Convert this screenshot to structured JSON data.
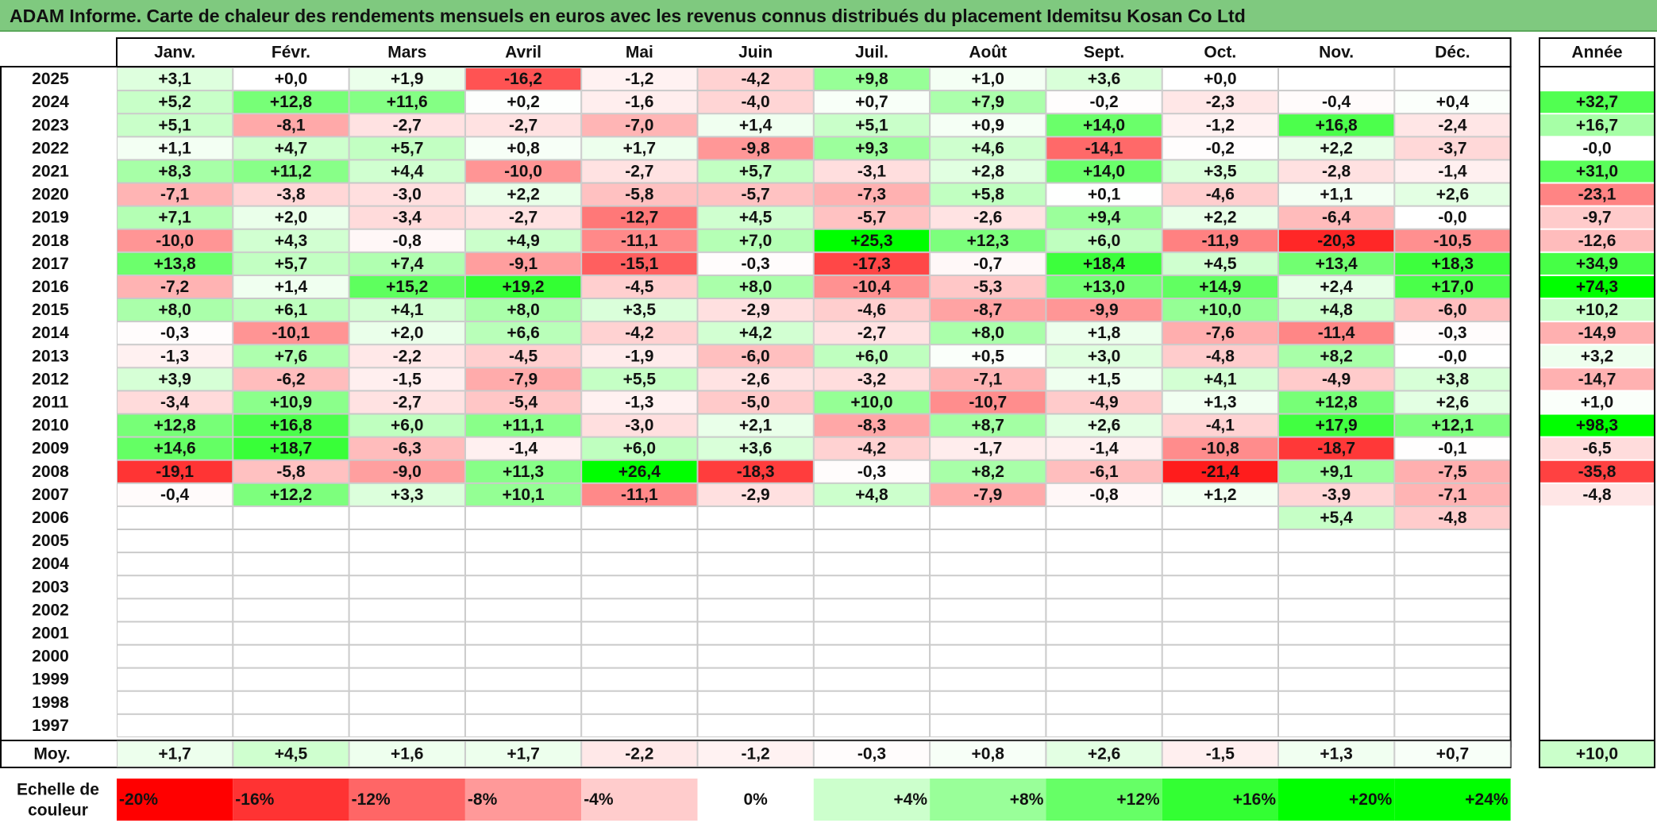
{
  "title": "ADAM Informe. Carte de chaleur des rendements mensuels en euros avec les revenus connus distribués du placement Idemitsu Kosan Co Ltd",
  "chart_data": {
    "type": "heatmap",
    "months": [
      "Janv.",
      "Févr.",
      "Mars",
      "Avril",
      "Mai",
      "Juin",
      "Juil.",
      "Août",
      "Sept.",
      "Oct.",
      "Nov.",
      "Déc."
    ],
    "annual_label": "Année",
    "avg_label": "Moy.",
    "rows": [
      {
        "year": "2025",
        "values": [
          "+3,1",
          "+0,0",
          "+1,9",
          "-16,2",
          "-1,2",
          "-4,2",
          "+9,8",
          "+1,0",
          "+3,6",
          "+0,0",
          "",
          ""
        ],
        "annual": ""
      },
      {
        "year": "2024",
        "values": [
          "+5,2",
          "+12,8",
          "+11,6",
          "+0,2",
          "-1,6",
          "-4,0",
          "+0,7",
          "+7,9",
          "-0,2",
          "-2,3",
          "-0,4",
          "+0,4"
        ],
        "annual": "+32,7"
      },
      {
        "year": "2023",
        "values": [
          "+5,1",
          "-8,1",
          "-2,7",
          "-2,7",
          "-7,0",
          "+1,4",
          "+5,1",
          "+0,9",
          "+14,0",
          "-1,2",
          "+16,8",
          "-2,4"
        ],
        "annual": "+16,7"
      },
      {
        "year": "2022",
        "values": [
          "+1,1",
          "+4,7",
          "+5,7",
          "+0,8",
          "+1,7",
          "-9,8",
          "+9,3",
          "+4,6",
          "-14,1",
          "-0,2",
          "+2,2",
          "-3,7"
        ],
        "annual": "-0,0"
      },
      {
        "year": "2021",
        "values": [
          "+8,3",
          "+11,2",
          "+4,4",
          "-10,0",
          "-2,7",
          "+5,7",
          "-3,1",
          "+2,8",
          "+14,0",
          "+3,5",
          "-2,8",
          "-1,4"
        ],
        "annual": "+31,0"
      },
      {
        "year": "2020",
        "values": [
          "-7,1",
          "-3,8",
          "-3,0",
          "+2,2",
          "-5,8",
          "-5,7",
          "-7,3",
          "+5,8",
          "+0,1",
          "-4,6",
          "+1,1",
          "+2,6"
        ],
        "annual": "-23,1"
      },
      {
        "year": "2019",
        "values": [
          "+7,1",
          "+2,0",
          "-3,4",
          "-2,7",
          "-12,7",
          "+4,5",
          "-5,7",
          "-2,6",
          "+9,4",
          "+2,2",
          "-6,4",
          "-0,0"
        ],
        "annual": "-9,7"
      },
      {
        "year": "2018",
        "values": [
          "-10,0",
          "+4,3",
          "-0,8",
          "+4,9",
          "-11,1",
          "+7,0",
          "+25,3",
          "+12,3",
          "+6,0",
          "-11,9",
          "-20,3",
          "-10,5"
        ],
        "annual": "-12,6"
      },
      {
        "year": "2017",
        "values": [
          "+13,8",
          "+5,7",
          "+7,4",
          "-9,1",
          "-15,1",
          "-0,3",
          "-17,3",
          "-0,7",
          "+18,4",
          "+4,5",
          "+13,4",
          "+18,3"
        ],
        "annual": "+34,9"
      },
      {
        "year": "2016",
        "values": [
          "-7,2",
          "+1,4",
          "+15,2",
          "+19,2",
          "-4,5",
          "+8,0",
          "-10,4",
          "-5,3",
          "+13,0",
          "+14,9",
          "+2,4",
          "+17,0"
        ],
        "annual": "+74,3"
      },
      {
        "year": "2015",
        "values": [
          "+8,0",
          "+6,1",
          "+4,1",
          "+8,0",
          "+3,5",
          "-2,9",
          "-4,6",
          "-8,7",
          "-9,9",
          "+10,0",
          "+4,8",
          "-6,0"
        ],
        "annual": "+10,2"
      },
      {
        "year": "2014",
        "values": [
          "-0,3",
          "-10,1",
          "+2,0",
          "+6,6",
          "-4,2",
          "+4,2",
          "-2,7",
          "+8,0",
          "+1,8",
          "-7,6",
          "-11,4",
          "-0,3"
        ],
        "annual": "-14,9"
      },
      {
        "year": "2013",
        "values": [
          "-1,3",
          "+7,6",
          "-2,2",
          "-4,5",
          "-1,9",
          "-6,0",
          "+6,0",
          "+0,5",
          "+3,0",
          "-4,8",
          "+8,2",
          "-0,0"
        ],
        "annual": "+3,2"
      },
      {
        "year": "2012",
        "values": [
          "+3,9",
          "-6,2",
          "-1,5",
          "-7,9",
          "+5,5",
          "-2,6",
          "-3,2",
          "-7,1",
          "+1,5",
          "+4,1",
          "-4,9",
          "+3,8"
        ],
        "annual": "-14,7"
      },
      {
        "year": "2011",
        "values": [
          "-3,4",
          "+10,9",
          "-2,7",
          "-5,4",
          "-1,3",
          "-5,0",
          "+10,0",
          "-10,7",
          "-4,9",
          "+1,3",
          "+12,8",
          "+2,6"
        ],
        "annual": "+1,0"
      },
      {
        "year": "2010",
        "values": [
          "+12,8",
          "+16,8",
          "+6,0",
          "+11,1",
          "-3,0",
          "+2,1",
          "-8,3",
          "+8,7",
          "+2,6",
          "-4,1",
          "+17,9",
          "+12,1"
        ],
        "annual": "+98,3"
      },
      {
        "year": "2009",
        "values": [
          "+14,6",
          "+18,7",
          "-6,3",
          "-1,4",
          "+6,0",
          "+3,6",
          "-4,2",
          "-1,7",
          "-1,4",
          "-10,8",
          "-18,7",
          "-0,1"
        ],
        "annual": "-6,5"
      },
      {
        "year": "2008",
        "values": [
          "-19,1",
          "-5,8",
          "-9,0",
          "+11,3",
          "+26,4",
          "-18,3",
          "-0,3",
          "+8,2",
          "-6,1",
          "-21,4",
          "+9,1",
          "-7,5"
        ],
        "annual": "-35,8"
      },
      {
        "year": "2007",
        "values": [
          "-0,4",
          "+12,2",
          "+3,3",
          "+10,1",
          "-11,1",
          "-2,9",
          "+4,8",
          "-7,9",
          "-0,8",
          "+1,2",
          "-3,9",
          "-7,1"
        ],
        "annual": "-4,8"
      },
      {
        "year": "2006",
        "values": [
          "",
          "",
          "",
          "",
          "",
          "",
          "",
          "",
          "",
          "",
          "+5,4",
          "-4,8"
        ],
        "annual": ""
      },
      {
        "year": "2005",
        "values": [
          "",
          "",
          "",
          "",
          "",
          "",
          "",
          "",
          "",
          "",
          "",
          ""
        ],
        "annual": ""
      },
      {
        "year": "2004",
        "values": [
          "",
          "",
          "",
          "",
          "",
          "",
          "",
          "",
          "",
          "",
          "",
          ""
        ],
        "annual": ""
      },
      {
        "year": "2003",
        "values": [
          "",
          "",
          "",
          "",
          "",
          "",
          "",
          "",
          "",
          "",
          "",
          ""
        ],
        "annual": ""
      },
      {
        "year": "2002",
        "values": [
          "",
          "",
          "",
          "",
          "",
          "",
          "",
          "",
          "",
          "",
          "",
          ""
        ],
        "annual": ""
      },
      {
        "year": "2001",
        "values": [
          "",
          "",
          "",
          "",
          "",
          "",
          "",
          "",
          "",
          "",
          "",
          ""
        ],
        "annual": ""
      },
      {
        "year": "2000",
        "values": [
          "",
          "",
          "",
          "",
          "",
          "",
          "",
          "",
          "",
          "",
          "",
          ""
        ],
        "annual": ""
      },
      {
        "year": "1999",
        "values": [
          "",
          "",
          "",
          "",
          "",
          "",
          "",
          "",
          "",
          "",
          "",
          ""
        ],
        "annual": ""
      },
      {
        "year": "1998",
        "values": [
          "",
          "",
          "",
          "",
          "",
          "",
          "",
          "",
          "",
          "",
          "",
          ""
        ],
        "annual": ""
      },
      {
        "year": "1997",
        "values": [
          "",
          "",
          "",
          "",
          "",
          "",
          "",
          "",
          "",
          "",
          "",
          ""
        ],
        "annual": ""
      }
    ],
    "averages": [
      "+1,7",
      "+4,5",
      "+1,6",
      "+1,7",
      "-2,2",
      "-1,2",
      "-0,3",
      "+0,8",
      "+2,6",
      "-1,5",
      "+1,3",
      "+0,7"
    ],
    "annual_average": "+10,0",
    "scale_label": "Echelle de couleur",
    "scale": [
      {
        "label": "-20%",
        "value": -20,
        "align": "left"
      },
      {
        "label": "-16%",
        "value": -16,
        "align": "left"
      },
      {
        "label": "-12%",
        "value": -12,
        "align": "left"
      },
      {
        "label": "-8%",
        "value": -8,
        "align": "left"
      },
      {
        "label": "-4%",
        "value": -4,
        "align": "left"
      },
      {
        "label": "0%",
        "value": 0,
        "align": "center"
      },
      {
        "label": "+4%",
        "value": 4,
        "align": "right"
      },
      {
        "label": "+8%",
        "value": 8,
        "align": "right"
      },
      {
        "label": "+12%",
        "value": 12,
        "align": "right"
      },
      {
        "label": "+16%",
        "value": 16,
        "align": "right"
      },
      {
        "label": "+20%",
        "value": 20,
        "align": "right"
      },
      {
        "label": "+24%",
        "value": 24,
        "align": "right"
      }
    ],
    "colors": {
      "negative_max": "#ff0000",
      "neutral": "#ffffff",
      "positive_max": "#00ff00",
      "title_bar": "#7fc97f"
    }
  }
}
